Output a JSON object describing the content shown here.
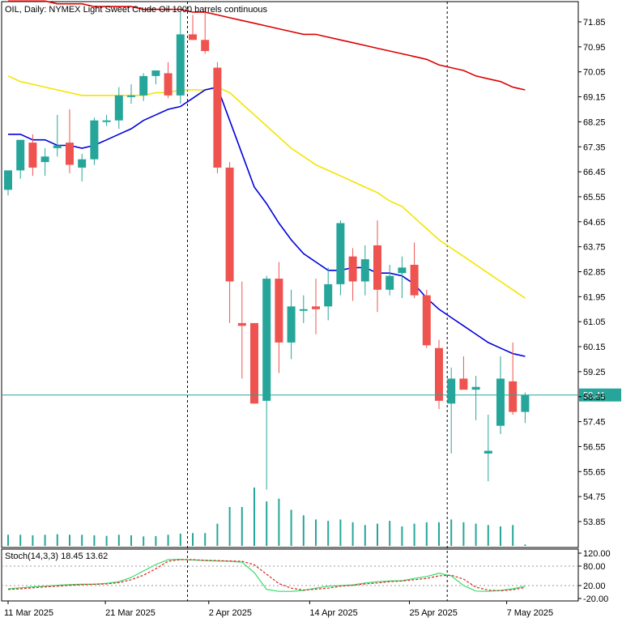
{
  "header": {
    "symbol_title": "OIL, Daily:  NYMEX Light Sweet Crude Oil 1000 barrels continuous"
  },
  "indicator": {
    "label": "Stoch(14,3,3) 18.45 13.62"
  },
  "price_axis": {
    "ticks": [
      "71.85",
      "70.95",
      "70.05",
      "69.15",
      "68.25",
      "67.35",
      "66.45",
      "65.55",
      "64.65",
      "63.75",
      "62.85",
      "61.95",
      "61.05",
      "60.15",
      "59.25",
      "58.35",
      "57.45",
      "56.55",
      "55.65",
      "54.75",
      "53.85"
    ],
    "current_price": "58.41"
  },
  "stoch_axis": {
    "ticks": [
      "120.00",
      "80.00",
      "20.00",
      "-20.00"
    ]
  },
  "time_axis": {
    "labels": [
      "11 Mar 2025",
      "21 Mar 2025",
      "2 Apr 2025",
      "14 Apr 2025",
      "25 Apr 2025",
      "7 May 2025"
    ]
  },
  "colors": {
    "bull": "#26a69a",
    "bear": "#ef5350",
    "ma_fast": "#0000dd",
    "ma_mid": "#f4e400",
    "ma_slow": "#dd0000",
    "stoch_main": "#33dd66",
    "stoch_signal": "#dd2222",
    "price_line": "#26a69a",
    "axis": "#000000"
  },
  "chart_data": {
    "type": "candlestick",
    "title": "OIL, Daily:  NYMEX Light Sweet Crude Oil 1000 barrels continuous",
    "ylim": [
      53.4,
      72.6
    ],
    "grid": false,
    "candles": [
      {
        "o": 65.8,
        "h": 66.5,
        "l": 65.6,
        "c": 66.5
      },
      {
        "o": 66.5,
        "h": 67.6,
        "l": 66.2,
        "c": 67.6
      },
      {
        "o": 67.5,
        "h": 67.8,
        "l": 66.3,
        "c": 66.6
      },
      {
        "o": 66.8,
        "h": 67.3,
        "l": 66.3,
        "c": 67.0
      },
      {
        "o": 67.3,
        "h": 68.5,
        "l": 67.0,
        "c": 67.4
      },
      {
        "o": 67.5,
        "h": 68.7,
        "l": 66.4,
        "c": 66.7
      },
      {
        "o": 66.6,
        "h": 67.1,
        "l": 66.1,
        "c": 66.9
      },
      {
        "o": 66.9,
        "h": 68.4,
        "l": 66.7,
        "c": 68.3
      },
      {
        "o": 68.3,
        "h": 68.5,
        "l": 68.1,
        "c": 68.3
      },
      {
        "o": 68.3,
        "h": 69.5,
        "l": 68.0,
        "c": 69.2
      },
      {
        "o": 69.2,
        "h": 69.6,
        "l": 68.9,
        "c": 69.2
      },
      {
        "o": 69.2,
        "h": 70.0,
        "l": 69.0,
        "c": 69.9
      },
      {
        "o": 69.9,
        "h": 70.1,
        "l": 69.6,
        "c": 70.1
      },
      {
        "o": 70.0,
        "h": 70.4,
        "l": 69.1,
        "c": 69.2
      },
      {
        "o": 69.2,
        "h": 72.2,
        "l": 68.9,
        "c": 71.4
      },
      {
        "o": 71.4,
        "h": 72.1,
        "l": 71.2,
        "c": 71.2
      },
      {
        "o": 71.2,
        "h": 72.4,
        "l": 70.7,
        "c": 70.8
      },
      {
        "o": 70.2,
        "h": 70.4,
        "l": 66.4,
        "c": 66.6
      },
      {
        "o": 66.6,
        "h": 66.8,
        "l": 61.0,
        "c": 62.5
      },
      {
        "o": 61.0,
        "h": 62.5,
        "l": 59.0,
        "c": 60.9
      },
      {
        "o": 61.0,
        "h": 61.0,
        "l": 58.1,
        "c": 58.1
      },
      {
        "o": 58.2,
        "h": 62.7,
        "l": 55.0,
        "c": 62.6
      },
      {
        "o": 62.6,
        "h": 63.2,
        "l": 59.2,
        "c": 60.3
      },
      {
        "o": 60.3,
        "h": 62.2,
        "l": 59.7,
        "c": 61.6
      },
      {
        "o": 61.5,
        "h": 62.0,
        "l": 61.0,
        "c": 61.5
      },
      {
        "o": 61.6,
        "h": 62.6,
        "l": 60.6,
        "c": 61.5
      },
      {
        "o": 61.6,
        "h": 63.0,
        "l": 61.1,
        "c": 62.4
      },
      {
        "o": 62.4,
        "h": 64.7,
        "l": 62.0,
        "c": 64.6
      },
      {
        "o": 63.4,
        "h": 63.7,
        "l": 61.8,
        "c": 62.5
      },
      {
        "o": 62.5,
        "h": 63.8,
        "l": 62.0,
        "c": 63.3
      },
      {
        "o": 63.8,
        "h": 64.7,
        "l": 61.4,
        "c": 62.2
      },
      {
        "o": 62.2,
        "h": 63.1,
        "l": 62.0,
        "c": 62.7
      },
      {
        "o": 62.8,
        "h": 63.4,
        "l": 61.9,
        "c": 63.0
      },
      {
        "o": 63.1,
        "h": 63.9,
        "l": 61.9,
        "c": 62.0
      },
      {
        "o": 62.0,
        "h": 62.2,
        "l": 60.1,
        "c": 60.2
      },
      {
        "o": 60.1,
        "h": 60.4,
        "l": 57.9,
        "c": 58.2
      },
      {
        "o": 58.1,
        "h": 59.4,
        "l": 56.3,
        "c": 59.0
      },
      {
        "o": 59.0,
        "h": 59.8,
        "l": 58.7,
        "c": 58.6
      },
      {
        "o": 58.6,
        "h": 59.1,
        "l": 57.5,
        "c": 58.7
      },
      {
        "o": 56.3,
        "h": 57.7,
        "l": 55.3,
        "c": 56.4
      },
      {
        "o": 57.3,
        "h": 59.8,
        "l": 57.0,
        "c": 59.0
      },
      {
        "o": 58.9,
        "h": 60.3,
        "l": 57.7,
        "c": 57.8
      },
      {
        "o": 57.8,
        "h": 58.5,
        "l": 57.4,
        "c": 58.4
      }
    ],
    "ma_fast": [
      67.8,
      67.8,
      67.6,
      67.6,
      67.4,
      67.4,
      67.3,
      67.4,
      67.6,
      67.8,
      68.0,
      68.3,
      68.5,
      68.7,
      68.8,
      69.1,
      69.4,
      69.5,
      68.3,
      67.1,
      65.9,
      65.3,
      64.6,
      64.0,
      63.5,
      63.2,
      62.9,
      62.9,
      63.0,
      63.0,
      62.8,
      62.8,
      62.7,
      62.4,
      61.9,
      61.5,
      61.2,
      60.9,
      60.6,
      60.3,
      60.1,
      59.9,
      59.8
    ],
    "ma_mid": [
      69.9,
      69.7,
      69.6,
      69.5,
      69.4,
      69.3,
      69.2,
      69.2,
      69.2,
      69.2,
      69.2,
      69.2,
      69.3,
      69.3,
      69.4,
      69.4,
      69.4,
      69.5,
      69.3,
      68.9,
      68.5,
      68.1,
      67.7,
      67.3,
      67.0,
      66.7,
      66.5,
      66.3,
      66.1,
      65.9,
      65.7,
      65.4,
      65.2,
      64.8,
      64.4,
      64.0,
      63.7,
      63.4,
      63.1,
      62.8,
      62.5,
      62.2,
      61.9
    ],
    "ma_slow": [
      72.6,
      72.6,
      72.6,
      72.6,
      72.5,
      72.5,
      72.5,
      72.4,
      72.4,
      72.4,
      72.4,
      72.3,
      72.3,
      72.3,
      72.3,
      72.2,
      72.2,
      72.1,
      72.0,
      71.9,
      71.8,
      71.7,
      71.6,
      71.5,
      71.4,
      71.4,
      71.3,
      71.2,
      71.1,
      71.0,
      70.9,
      70.8,
      70.7,
      70.6,
      70.5,
      70.3,
      70.2,
      70.1,
      69.9,
      69.8,
      69.7,
      69.5,
      69.4
    ],
    "volume": [
      40,
      40,
      38,
      40,
      42,
      40,
      40,
      38,
      36,
      40,
      38,
      34,
      35,
      40,
      44,
      46,
      46,
      80,
      140,
      140,
      210,
      160,
      170,
      130,
      110,
      95,
      90,
      95,
      85,
      75,
      80,
      90,
      70,
      80,
      85,
      85,
      95,
      85,
      80,
      75,
      70,
      75,
      5
    ],
    "stochastic": {
      "main": [
        10,
        13,
        16,
        18,
        21,
        23,
        24,
        24,
        27,
        32,
        45,
        65,
        85,
        100,
        101,
        99,
        97,
        96,
        95,
        92,
        60,
        8,
        2,
        2,
        5,
        12,
        18,
        20,
        22,
        28,
        32,
        34,
        35,
        42,
        48,
        58,
        50,
        20,
        3,
        2,
        5,
        10,
        18
      ],
      "signal": [
        8,
        10,
        13,
        16,
        18,
        21,
        23,
        24,
        25,
        29,
        38,
        52,
        72,
        95,
        100,
        100,
        98,
        97,
        96,
        95,
        84,
        55,
        26,
        12,
        6,
        9,
        12,
        18,
        21,
        25,
        28,
        32,
        34,
        38,
        42,
        50,
        52,
        40,
        15,
        6,
        4,
        7,
        14
      ],
      "levels": [
        80,
        20
      ],
      "ylim": [
        -20,
        120
      ]
    },
    "current_price": 58.41,
    "x_labels": [
      "11 Mar 2025",
      "21 Mar 2025",
      "2 Apr 2025",
      "14 Apr 2025",
      "25 Apr 2025",
      "7 May 2025"
    ],
    "separators": [
      "2 Apr 2025",
      "25 Apr 2025"
    ]
  }
}
